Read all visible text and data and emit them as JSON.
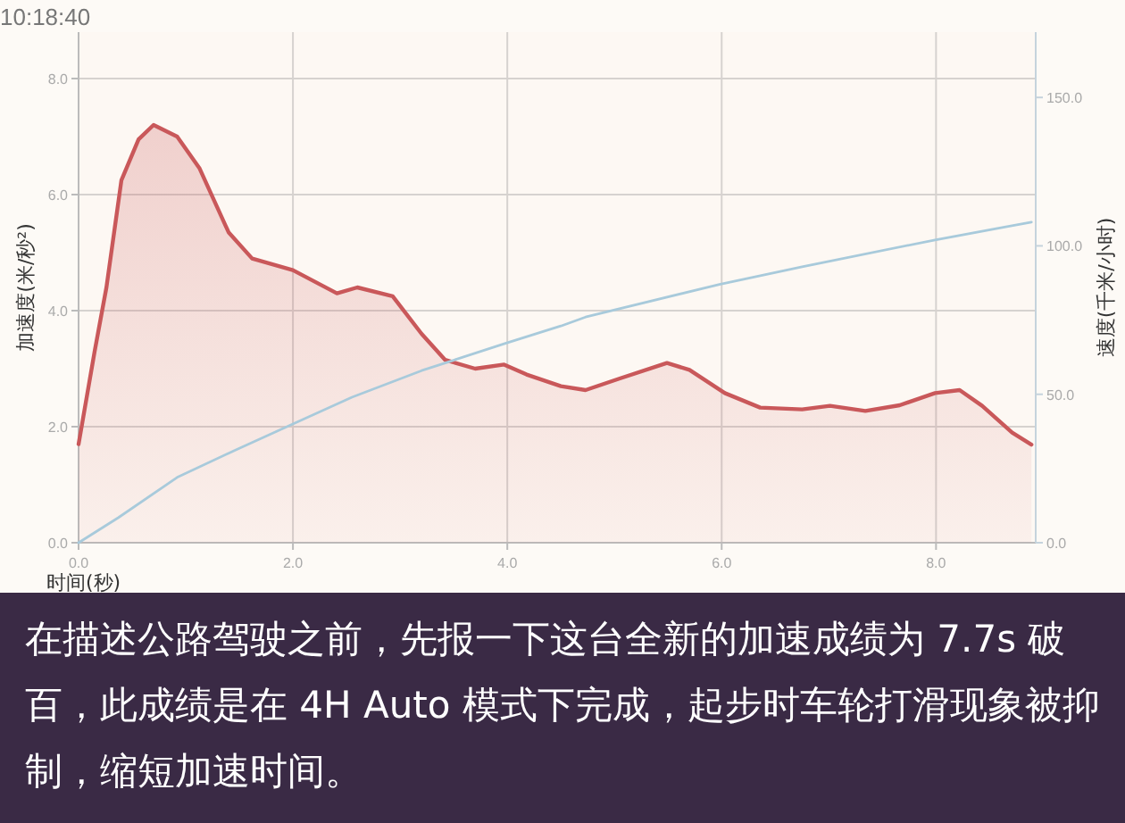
{
  "chart_data": {
    "type": "area",
    "xlabel": "时间(秒)",
    "ylabel": "加速度(米/秒²)",
    "y2label": "速度(千米/小时)",
    "xlim": [
      0,
      8.93
    ],
    "ylim": [
      0,
      8.8
    ],
    "y2lim": [
      0,
      172
    ],
    "xticks": [
      {
        "value": 0,
        "label": "0.0"
      },
      {
        "value": 2,
        "label": "2.0"
      },
      {
        "value": 4,
        "label": "4.0"
      },
      {
        "value": 6,
        "label": "6.0"
      },
      {
        "value": 8,
        "label": "8.0"
      }
    ],
    "yticks": [
      {
        "value": 0,
        "label": "0.0"
      },
      {
        "value": 2,
        "label": "2.0"
      },
      {
        "value": 4,
        "label": "4.0"
      },
      {
        "value": 6,
        "label": "6.0"
      },
      {
        "value": 8,
        "label": "8.0"
      }
    ],
    "y2ticks": [
      {
        "value": 0,
        "label": "0.0"
      },
      {
        "value": 50,
        "label": "50.0"
      },
      {
        "value": 100,
        "label": "100.0"
      },
      {
        "value": 150,
        "label": "150.0"
      }
    ],
    "grid": true,
    "series": [
      {
        "type": "area",
        "color": "#c9585a",
        "x": [
          0,
          0.15,
          0.26,
          0.4,
          0.56,
          0.7,
          0.92,
          1.13,
          1.4,
          1.62,
          2.0,
          2.41,
          2.6,
          2.93,
          3.2,
          3.42,
          3.7,
          3.97,
          4.18,
          4.5,
          4.73,
          5.05,
          5.49,
          5.7,
          6.03,
          6.36,
          6.75,
          7.01,
          7.34,
          7.66,
          7.99,
          8.22,
          8.43,
          8.71,
          8.89
        ],
        "values": [
          1.7,
          3.3,
          4.4,
          6.25,
          6.95,
          7.2,
          7.0,
          6.45,
          5.35,
          4.9,
          4.7,
          4.3,
          4.4,
          4.25,
          3.6,
          3.15,
          3.0,
          3.07,
          2.9,
          2.7,
          2.63,
          2.83,
          3.1,
          2.98,
          2.58,
          2.33,
          2.3,
          2.36,
          2.27,
          2.37,
          2.58,
          2.63,
          2.36,
          1.9,
          1.69
        ]
      },
      {
        "type": "line",
        "axis": "y2",
        "color": "#a8cadb",
        "x": [
          0,
          0.37,
          0.92,
          1.45,
          2.0,
          2.55,
          3.2,
          3.97,
          4.5,
          4.73,
          5.98,
          6.75,
          7.99,
          8.89
        ],
        "values": [
          0,
          8.4,
          22,
          31,
          40,
          49,
          58,
          67,
          73,
          76,
          87,
          93,
          102,
          108
        ]
      }
    ],
    "annotations": [
      "10:18:40",
      "在描述公路驾驶之前，先报一下这台全新的加速成绩为 7.7s 破百，此成绩是在 4H Auto 模式下完成，起步时车轮打滑现象被抑制，缩短加速时间。"
    ]
  }
}
